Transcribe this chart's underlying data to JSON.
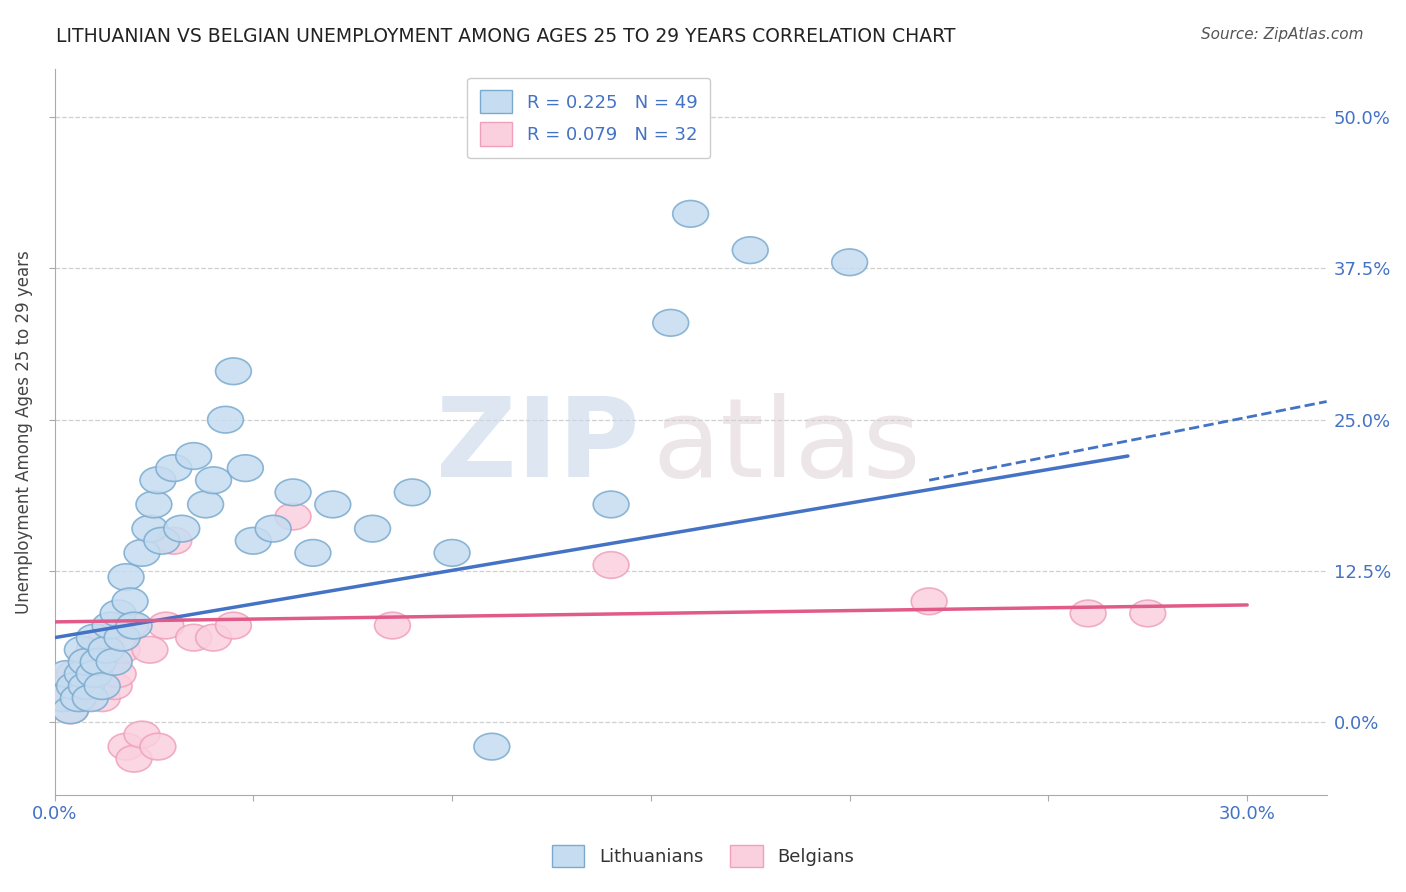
{
  "title": "LITHUANIAN VS BELGIAN UNEMPLOYMENT AMONG AGES 25 TO 29 YEARS CORRELATION CHART",
  "source": "Source: ZipAtlas.com",
  "ylabel": "Unemployment Among Ages 25 to 29 years",
  "xlim": [
    0.0,
    0.32
  ],
  "ylim": [
    -0.06,
    0.54
  ],
  "xticks": [
    0.0,
    0.05,
    0.1,
    0.15,
    0.2,
    0.25,
    0.3
  ],
  "yticks": [
    0.0,
    0.125,
    0.25,
    0.375,
    0.5
  ],
  "R_blue": 0.225,
  "N_blue": 49,
  "R_pink": 0.079,
  "N_pink": 32,
  "legend_label_blue": "Lithuanians",
  "legend_label_pink": "Belgians",
  "blue_color": "#8bbde0",
  "pink_color": "#f5a8bf",
  "blue_line_color": "#4472C4",
  "pink_line_color": "#e05a8a",
  "watermark_zip": "ZIP",
  "watermark_atlas": "atlas",
  "background_color": "#ffffff",
  "grid_color": "#d0d0d0",
  "title_color": "#222222",
  "axis_label_color": "#4472C4",
  "blue_scatter": [
    [
      0.002,
      0.02
    ],
    [
      0.003,
      0.04
    ],
    [
      0.004,
      0.01
    ],
    [
      0.005,
      0.03
    ],
    [
      0.006,
      0.02
    ],
    [
      0.007,
      0.04
    ],
    [
      0.007,
      0.06
    ],
    [
      0.008,
      0.03
    ],
    [
      0.008,
      0.05
    ],
    [
      0.009,
      0.02
    ],
    [
      0.01,
      0.04
    ],
    [
      0.01,
      0.07
    ],
    [
      0.011,
      0.05
    ],
    [
      0.012,
      0.03
    ],
    [
      0.013,
      0.06
    ],
    [
      0.014,
      0.08
    ],
    [
      0.015,
      0.05
    ],
    [
      0.016,
      0.09
    ],
    [
      0.017,
      0.07
    ],
    [
      0.018,
      0.12
    ],
    [
      0.019,
      0.1
    ],
    [
      0.02,
      0.08
    ],
    [
      0.022,
      0.14
    ],
    [
      0.024,
      0.16
    ],
    [
      0.025,
      0.18
    ],
    [
      0.026,
      0.2
    ],
    [
      0.027,
      0.15
    ],
    [
      0.03,
      0.21
    ],
    [
      0.032,
      0.16
    ],
    [
      0.035,
      0.22
    ],
    [
      0.038,
      0.18
    ],
    [
      0.04,
      0.2
    ],
    [
      0.043,
      0.25
    ],
    [
      0.045,
      0.29
    ],
    [
      0.048,
      0.21
    ],
    [
      0.05,
      0.15
    ],
    [
      0.055,
      0.16
    ],
    [
      0.06,
      0.19
    ],
    [
      0.065,
      0.14
    ],
    [
      0.07,
      0.18
    ],
    [
      0.08,
      0.16
    ],
    [
      0.09,
      0.19
    ],
    [
      0.1,
      0.14
    ],
    [
      0.11,
      -0.02
    ],
    [
      0.14,
      0.18
    ],
    [
      0.155,
      0.33
    ],
    [
      0.16,
      0.42
    ],
    [
      0.175,
      0.39
    ],
    [
      0.2,
      0.38
    ]
  ],
  "pink_scatter": [
    [
      0.002,
      0.02
    ],
    [
      0.004,
      0.01
    ],
    [
      0.005,
      0.04
    ],
    [
      0.006,
      0.03
    ],
    [
      0.007,
      0.02
    ],
    [
      0.008,
      0.05
    ],
    [
      0.009,
      0.03
    ],
    [
      0.01,
      0.06
    ],
    [
      0.011,
      0.04
    ],
    [
      0.012,
      0.02
    ],
    [
      0.013,
      0.07
    ],
    [
      0.014,
      0.05
    ],
    [
      0.015,
      0.03
    ],
    [
      0.016,
      0.04
    ],
    [
      0.017,
      0.06
    ],
    [
      0.018,
      -0.02
    ],
    [
      0.019,
      0.08
    ],
    [
      0.02,
      -0.03
    ],
    [
      0.022,
      -0.01
    ],
    [
      0.024,
      0.06
    ],
    [
      0.026,
      -0.02
    ],
    [
      0.028,
      0.08
    ],
    [
      0.03,
      0.15
    ],
    [
      0.035,
      0.07
    ],
    [
      0.04,
      0.07
    ],
    [
      0.045,
      0.08
    ],
    [
      0.06,
      0.17
    ],
    [
      0.085,
      0.08
    ],
    [
      0.14,
      0.13
    ],
    [
      0.22,
      0.1
    ],
    [
      0.26,
      0.09
    ],
    [
      0.275,
      0.09
    ]
  ],
  "blue_line": [
    [
      0.0,
      0.07
    ],
    [
      0.27,
      0.22
    ]
  ],
  "blue_dash_line": [
    [
      0.22,
      0.2
    ],
    [
      0.32,
      0.265
    ]
  ],
  "pink_line": [
    [
      0.0,
      0.083
    ],
    [
      0.3,
      0.097
    ]
  ]
}
